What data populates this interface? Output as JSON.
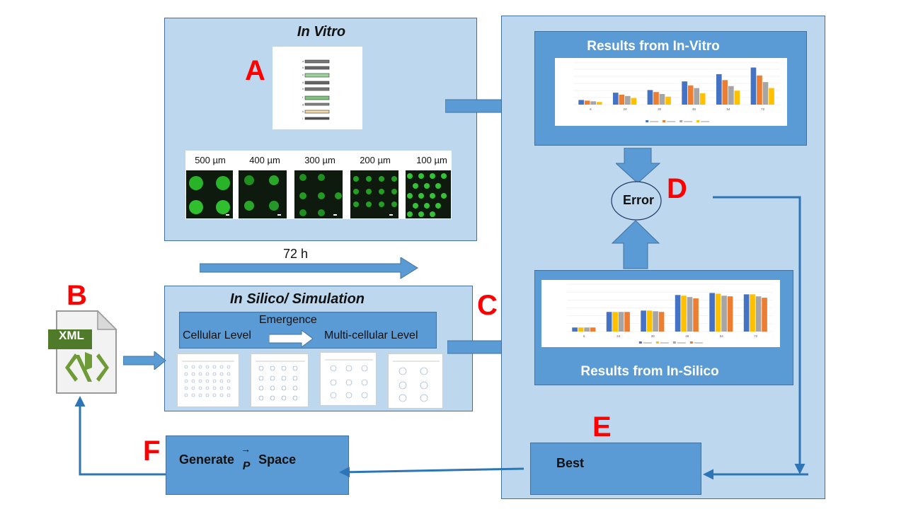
{
  "labels": {
    "A": "A",
    "B": "B",
    "C": "C",
    "D": "D",
    "E": "E",
    "F": "F"
  },
  "in_vitro": {
    "title": "In Vitro",
    "micro_labels": [
      "500 µm",
      "400 µm",
      "300 µm",
      "200 µm",
      "100 µm"
    ]
  },
  "arrow_72h": "72 h",
  "in_silico": {
    "title": "In Silico/ Simulation",
    "emergence": "Emergence",
    "cellular": "Cellular Level",
    "multicellular": "Multi-cellular Level"
  },
  "xml_label": "XML",
  "results_vitro": {
    "title": "Results from In-Vitro"
  },
  "results_silico": {
    "title": "Results from In-Silico"
  },
  "error_label": "Error",
  "best_label": "Best",
  "generate": {
    "prefix": "Generate",
    "vector": "P",
    "suffix": "Space"
  },
  "colors": {
    "panel_light": "#bdd7ee",
    "panel_mid": "#5b9bd5",
    "border": "#41719c",
    "letters": "#ff0000",
    "connector": "#2e75b6"
  },
  "charts": [
    {
      "id": "vitro",
      "type": "bar",
      "categories": [
        "6",
        "24",
        "30",
        "48",
        "54",
        "72"
      ],
      "series": [
        {
          "values": [
            0.35,
            0.9,
            1.1,
            1.75,
            2.3,
            2.8
          ],
          "color": "#4472c4"
        },
        {
          "values": [
            0.3,
            0.75,
            0.95,
            1.45,
            1.85,
            2.2
          ],
          "color": "#ed7d31"
        },
        {
          "values": [
            0.25,
            0.65,
            0.8,
            1.25,
            1.4,
            1.7
          ],
          "color": "#a5a5a5"
        },
        {
          "values": [
            0.2,
            0.5,
            0.6,
            0.85,
            1.05,
            1.25
          ],
          "color": "#ffc000"
        }
      ],
      "ylim": [
        0,
        3.2
      ],
      "grid": true
    },
    {
      "id": "silico",
      "type": "bar",
      "categories": [
        "6",
        "24",
        "30",
        "48",
        "54",
        "72"
      ],
      "series": [
        {
          "values": [
            6e-05,
            0.00029,
            0.00031,
            0.00054,
            0.00057,
            0.00055
          ],
          "color": "#4472c4"
        },
        {
          "values": [
            6e-05,
            0.00029,
            0.00031,
            0.00053,
            0.00056,
            0.00055
          ],
          "color": "#ffc000"
        },
        {
          "values": [
            6e-05,
            0.00029,
            0.0003,
            0.00051,
            0.00053,
            0.00052
          ],
          "color": "#a5a5a5"
        },
        {
          "values": [
            6e-05,
            0.00029,
            0.00029,
            0.00049,
            0.00052,
            0.0005
          ],
          "color": "#ed7d31"
        }
      ],
      "ylim": [
        0,
        0.0007
      ],
      "grid": true
    }
  ]
}
